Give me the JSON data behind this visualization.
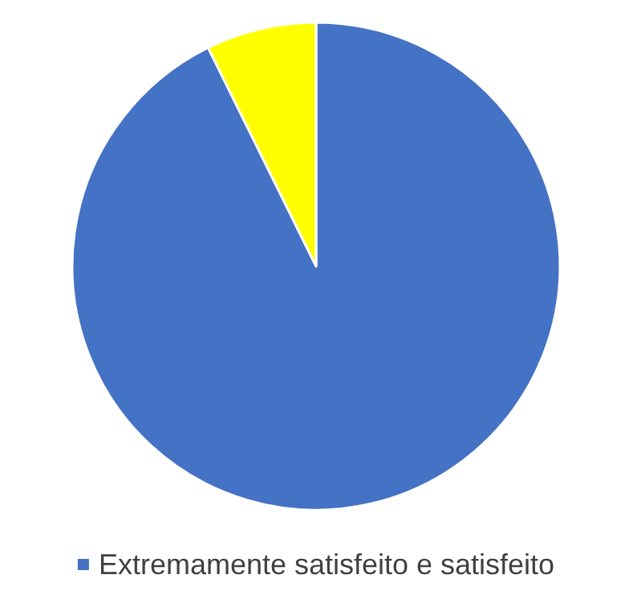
{
  "chart_data": {
    "type": "pie",
    "categories": [
      "Extremamente satisfeito e satisfeito",
      null
    ],
    "values": [
      92.7,
      7.3
    ],
    "colors": [
      "#4472c4",
      "#ffff00"
    ],
    "legend": "bottom"
  }
}
